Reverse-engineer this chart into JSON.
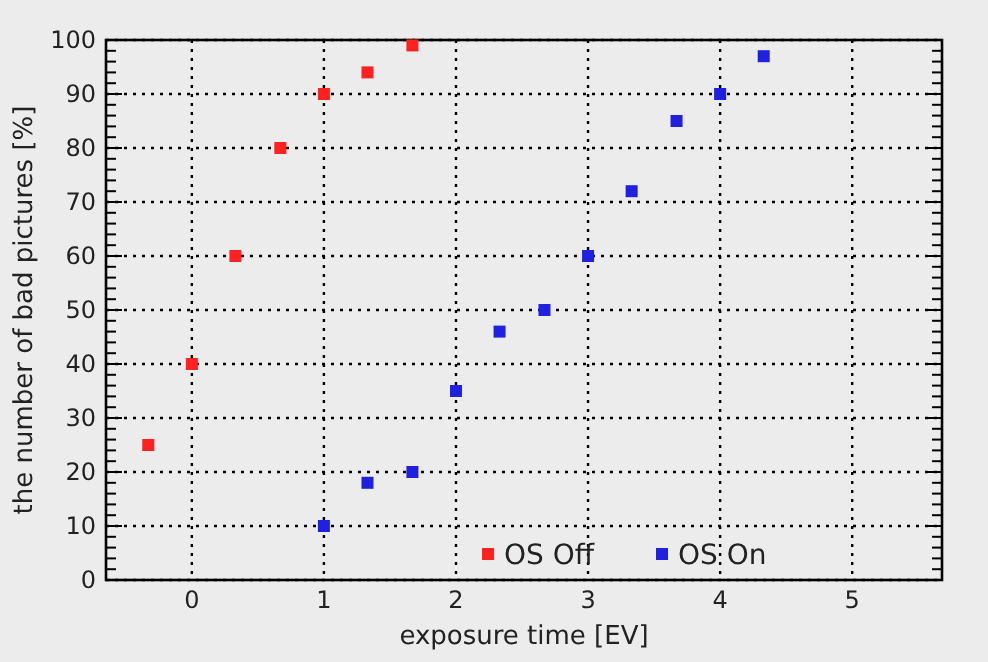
{
  "chart_data": {
    "type": "scatter",
    "xlabel": "exposure time [EV]",
    "ylabel": "the number of bad pictures [%]",
    "xlim": [
      -0.65,
      5.68
    ],
    "xticks": [
      0,
      1,
      2,
      3,
      4,
      5
    ],
    "ylim": [
      0,
      100
    ],
    "yticks": [
      0,
      10,
      20,
      30,
      40,
      50,
      60,
      70,
      80,
      90,
      100
    ],
    "grid": true,
    "legend": "bottom right",
    "marker": "square",
    "series": [
      {
        "name": "OS Off",
        "color": "#ff2020",
        "x": [
          -0.33,
          0,
          0.33,
          0.67,
          1,
          1.33,
          1.67
        ],
        "values": [
          25,
          40,
          60,
          80,
          90,
          94,
          99
        ]
      },
      {
        "name": "OS On",
        "color": "#2020e0",
        "x": [
          1,
          1.33,
          1.67,
          2,
          2.33,
          2.67,
          3,
          3.33,
          3.67,
          4,
          4.33
        ],
        "values": [
          10,
          18,
          20,
          35,
          46,
          50,
          60,
          72,
          85,
          90,
          97
        ]
      }
    ]
  }
}
